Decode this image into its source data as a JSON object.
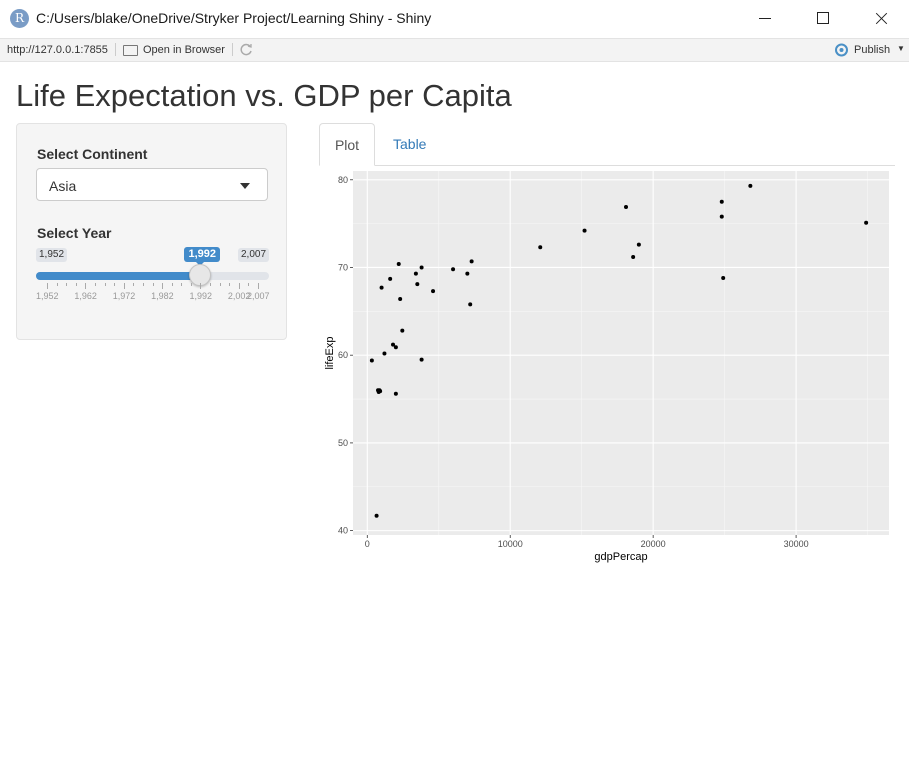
{
  "window": {
    "title": "C:/Users/blake/OneDrive/Stryker Project/Learning Shiny - Shiny",
    "icon": "R"
  },
  "toolbar": {
    "url": "http://127.0.0.1:7855",
    "open_in_browser": "Open in Browser",
    "publish": "Publish"
  },
  "page": {
    "title": "Life Expectation vs. GDP per Capita"
  },
  "sidebar": {
    "continent_label": "Select Continent",
    "continent_value": "Asia",
    "year_label": "Select Year",
    "slider": {
      "min": "1,952",
      "max": "2,007",
      "value": "1,992",
      "min_num": 1952,
      "max_num": 2007,
      "value_num": 1992,
      "grid_labels": [
        "1,952",
        "1,962",
        "1,972",
        "1,982",
        "1,992",
        "2,002",
        "2,007"
      ]
    }
  },
  "tabs": [
    {
      "label": "Plot",
      "active": true
    },
    {
      "label": "Table",
      "active": false
    }
  ],
  "colors": {
    "accent": "#428bca",
    "link": "#337ab7",
    "panel_bg": "#ebebeb",
    "point": "#000000"
  },
  "chart_data": {
    "type": "scatter",
    "xlabel": "gdpPercap",
    "ylabel": "lifeExp",
    "xlim": [
      -1000,
      36500
    ],
    "ylim": [
      39.5,
      81
    ],
    "x_ticks": [
      0,
      10000,
      20000,
      30000
    ],
    "x_tick_labels": [
      "0",
      "10000",
      "20000",
      "30000"
    ],
    "y_ticks": [
      40,
      50,
      60,
      70,
      80
    ],
    "y_tick_labels": [
      "40",
      "50",
      "60",
      "70",
      "80"
    ],
    "grid": true,
    "points": [
      [
        320,
        59.4
      ],
      [
        650,
        41.7
      ],
      [
        750,
        56.0
      ],
      [
        800,
        55.8
      ],
      [
        850,
        56.0
      ],
      [
        900,
        55.9
      ],
      [
        1000,
        67.7
      ],
      [
        1200,
        60.2
      ],
      [
        1600,
        68.7
      ],
      [
        1800,
        61.2
      ],
      [
        2000,
        55.6
      ],
      [
        2000,
        60.9
      ],
      [
        2200,
        70.4
      ],
      [
        2300,
        66.4
      ],
      [
        2450,
        62.8
      ],
      [
        3400,
        69.3
      ],
      [
        3500,
        68.1
      ],
      [
        3800,
        70.0
      ],
      [
        3800,
        59.5
      ],
      [
        4600,
        67.3
      ],
      [
        6000,
        69.8
      ],
      [
        7000,
        69.3
      ],
      [
        7300,
        70.7
      ],
      [
        7200,
        65.8
      ],
      [
        12100,
        72.3
      ],
      [
        15200,
        74.2
      ],
      [
        18100,
        76.9
      ],
      [
        18600,
        71.2
      ],
      [
        19000,
        72.6
      ],
      [
        24800,
        77.5
      ],
      [
        24800,
        75.8
      ],
      [
        24900,
        68.8
      ],
      [
        26800,
        79.3
      ],
      [
        34900,
        75.1
      ]
    ]
  }
}
